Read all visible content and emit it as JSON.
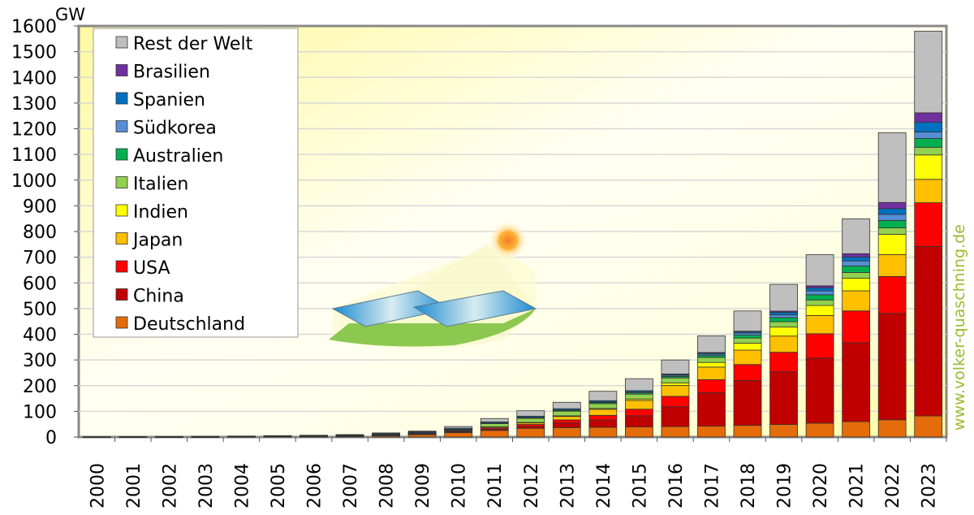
{
  "chart_data": {
    "type": "bar",
    "stacked": true,
    "ylabel": "GW",
    "ylim": [
      0,
      1600
    ],
    "yticks": [
      0,
      100,
      200,
      300,
      400,
      500,
      600,
      700,
      800,
      900,
      1000,
      1100,
      1200,
      1300,
      1400,
      1500,
      1600
    ],
    "grid": true,
    "legend_position": "top-left",
    "watermark": "www.volker-quaschning.de",
    "categories": [
      "2000",
      "2001",
      "2002",
      "2003",
      "2004",
      "2005",
      "2006",
      "2007",
      "2008",
      "2009",
      "2010",
      "2011",
      "2012",
      "2013",
      "2014",
      "2015",
      "2016",
      "2017",
      "2018",
      "2019",
      "2020",
      "2021",
      "2022",
      "2023"
    ],
    "series": [
      {
        "name": "Deutschland",
        "color": "#e46c0a",
        "values": [
          0.1,
          0.2,
          0.3,
          0.4,
          1.1,
          2.1,
          2.9,
          4.2,
          6.1,
          10.6,
          18,
          25.9,
          34.1,
          36.7,
          37.9,
          39.2,
          40.7,
          42.3,
          45.2,
          49,
          54,
          60,
          67,
          82
        ]
      },
      {
        "name": "China",
        "color": "#c00000",
        "values": [
          0,
          0,
          0,
          0,
          0,
          0.1,
          0.1,
          0.1,
          0.1,
          0.3,
          0.8,
          3.3,
          6.7,
          17.7,
          28.2,
          43.5,
          77.4,
          130,
          175,
          205,
          253,
          307,
          414,
          660
        ]
      },
      {
        "name": "USA",
        "color": "#ff0000",
        "values": [
          0,
          0,
          0,
          0.1,
          0.2,
          0.5,
          0.6,
          0.8,
          1.2,
          1.6,
          2.9,
          5.2,
          8.1,
          12.2,
          18.3,
          25.6,
          40.3,
          51,
          62,
          76,
          95,
          124,
          144,
          170
        ]
      },
      {
        "name": "Japan",
        "color": "#ffc000",
        "values": [
          0.3,
          0.5,
          0.6,
          0.9,
          1.1,
          1.4,
          1.7,
          1.9,
          2.1,
          2.6,
          3.6,
          4.9,
          6.6,
          13.6,
          23.3,
          34.2,
          42.8,
          49,
          56,
          63,
          71,
          78,
          85,
          91
        ]
      },
      {
        "name": "Indien",
        "color": "#ffff00",
        "values": [
          0,
          0,
          0,
          0,
          0,
          0,
          0,
          0,
          0,
          0,
          0.1,
          0.5,
          1.2,
          2.3,
          3.7,
          5.6,
          9.6,
          18,
          27,
          35,
          39,
          49,
          79,
          95
        ]
      },
      {
        "name": "Italien",
        "color": "#92d050",
        "values": [
          0,
          0,
          0,
          0,
          0,
          0,
          0.1,
          0.1,
          0.5,
          1.2,
          3.5,
          12.8,
          16.4,
          18.2,
          18.6,
          18.9,
          19.3,
          19.7,
          20.1,
          20.9,
          21.6,
          22.6,
          25,
          30
        ]
      },
      {
        "name": "Australien",
        "color": "#00b050",
        "values": [
          0,
          0,
          0,
          0,
          0,
          0,
          0,
          0.1,
          0.1,
          0.2,
          1,
          1.4,
          2.4,
          3.2,
          4.1,
          5,
          5.9,
          7.2,
          11.3,
          15.9,
          20.2,
          25,
          29,
          34
        ]
      },
      {
        "name": "Südkorea",
        "color": "#558ed5",
        "values": [
          0,
          0,
          0,
          0,
          0,
          0,
          0,
          0.1,
          0.4,
          0.5,
          0.6,
          0.7,
          1,
          1.5,
          2.5,
          3.6,
          4.5,
          5.8,
          7.9,
          11,
          15,
          20,
          24,
          25
        ]
      },
      {
        "name": "Spanien",
        "color": "#0070c0",
        "values": [
          0,
          0,
          0,
          0,
          0,
          0,
          0.1,
          0.7,
          3.4,
          3.4,
          3.9,
          4.3,
          4.7,
          4.8,
          4.9,
          4.9,
          4.9,
          4.9,
          4.9,
          9.9,
          12,
          15,
          22,
          38
        ]
      },
      {
        "name": "Brasilien",
        "color": "#7030a0",
        "values": [
          0,
          0,
          0,
          0,
          0,
          0,
          0,
          0,
          0,
          0,
          0,
          0,
          0,
          0,
          0,
          0,
          0.1,
          1,
          2.4,
          4.6,
          7.9,
          13,
          24,
          37
        ]
      },
      {
        "name": "Rest der Welt",
        "color": "#bfbfbf",
        "values": [
          0.8,
          0.9,
          1.3,
          1.6,
          1.6,
          1.3,
          1.5,
          1.5,
          2.1,
          2.6,
          6.6,
          13,
          21,
          25,
          36.5,
          46.6,
          54.4,
          65,
          79,
          104,
          121,
          136,
          272,
          318
        ]
      }
    ]
  }
}
